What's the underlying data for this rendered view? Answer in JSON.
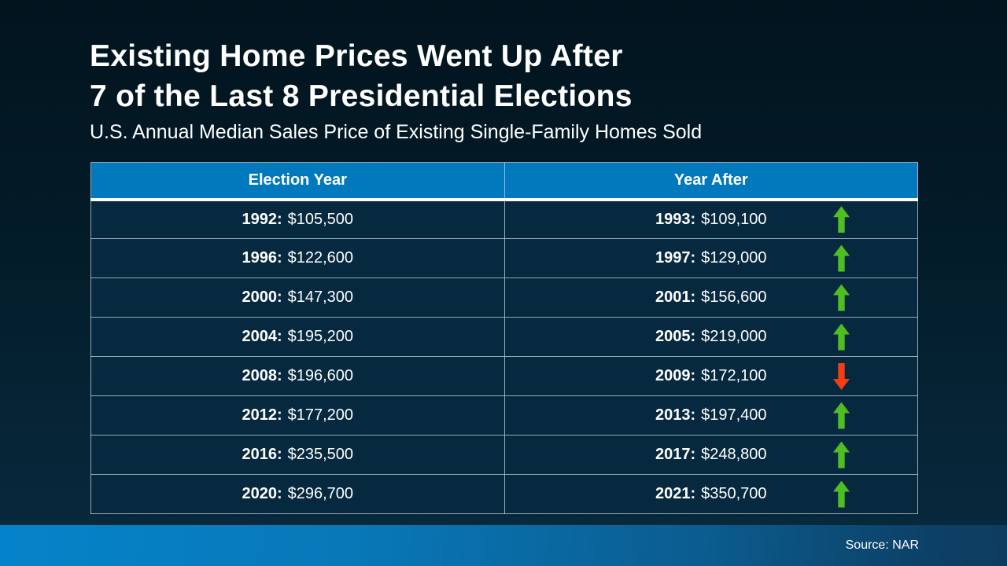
{
  "slide": {
    "title_line1": "Existing Home Prices Went Up After",
    "title_line2": "7 of the Last 8 Presidential Elections",
    "subtitle": "U.S. Annual Median Sales Price of Existing Single-Family Homes Sold",
    "source": "Source: NAR"
  },
  "table": {
    "headers": [
      "Election Year",
      "Year After"
    ],
    "rows": [
      {
        "election_year": "1992:",
        "election_price": "$105,500",
        "after_year": "1993:",
        "after_price": "$109,100",
        "direction": "up"
      },
      {
        "election_year": "1996:",
        "election_price": "$122,600",
        "after_year": "1997:",
        "after_price": "$129,000",
        "direction": "up"
      },
      {
        "election_year": "2000:",
        "election_price": "$147,300",
        "after_year": "2001:",
        "after_price": "$156,600",
        "direction": "up"
      },
      {
        "election_year": "2004:",
        "election_price": "$195,200",
        "after_year": "2005:",
        "after_price": "$219,000",
        "direction": "up"
      },
      {
        "election_year": "2008:",
        "election_price": "$196,600",
        "after_year": "2009:",
        "after_price": "$172,100",
        "direction": "down"
      },
      {
        "election_year": "2012:",
        "election_price": "$177,200",
        "after_year": "2013:",
        "after_price": "$197,400",
        "direction": "up"
      },
      {
        "election_year": "2016:",
        "election_price": "$235,500",
        "after_year": "2017:",
        "after_price": "$248,800",
        "direction": "up"
      },
      {
        "election_year": "2020:",
        "election_price": "$296,700",
        "after_year": "2021:",
        "after_price": "$350,700",
        "direction": "up"
      }
    ]
  },
  "colors": {
    "header_blue": "#0278bd",
    "row_background": "#062940",
    "up_arrow_green": "#4fbe20",
    "down_arrow_red": "#f43d10",
    "bar_gradient_left": "#0583ca",
    "bar_gradient_right": "#0d3c5f",
    "page_background_top": "#02141e",
    "page_background_bottom": "#07293c"
  },
  "chart_data": {
    "type": "table",
    "title": "Existing Home Prices Went Up After 7 of the Last 8 Presidential Elections",
    "subtitle": "U.S. Annual Median Sales Price of Existing Single-Family Homes Sold",
    "columns": [
      "Election Year",
      "Year After"
    ],
    "rows": [
      {
        "election_year": 1992,
        "election_median_price": 105500,
        "year_after": 1993,
        "year_after_median_price": 109100,
        "change": "up"
      },
      {
        "election_year": 1996,
        "election_median_price": 122600,
        "year_after": 1997,
        "year_after_median_price": 129000,
        "change": "up"
      },
      {
        "election_year": 2000,
        "election_median_price": 147300,
        "year_after": 2001,
        "year_after_median_price": 156600,
        "change": "up"
      },
      {
        "election_year": 2004,
        "election_median_price": 195200,
        "year_after": 2005,
        "year_after_median_price": 219000,
        "change": "up"
      },
      {
        "election_year": 2008,
        "election_median_price": 196600,
        "year_after": 2009,
        "year_after_median_price": 172100,
        "change": "down"
      },
      {
        "election_year": 2012,
        "election_median_price": 177200,
        "year_after": 2013,
        "year_after_median_price": 197400,
        "change": "up"
      },
      {
        "election_year": 2016,
        "election_median_price": 235500,
        "year_after": 2017,
        "year_after_median_price": 248800,
        "change": "up"
      },
      {
        "election_year": 2020,
        "election_median_price": 296700,
        "year_after": 2021,
        "year_after_median_price": 350700,
        "change": "up"
      }
    ],
    "source": "NAR"
  }
}
